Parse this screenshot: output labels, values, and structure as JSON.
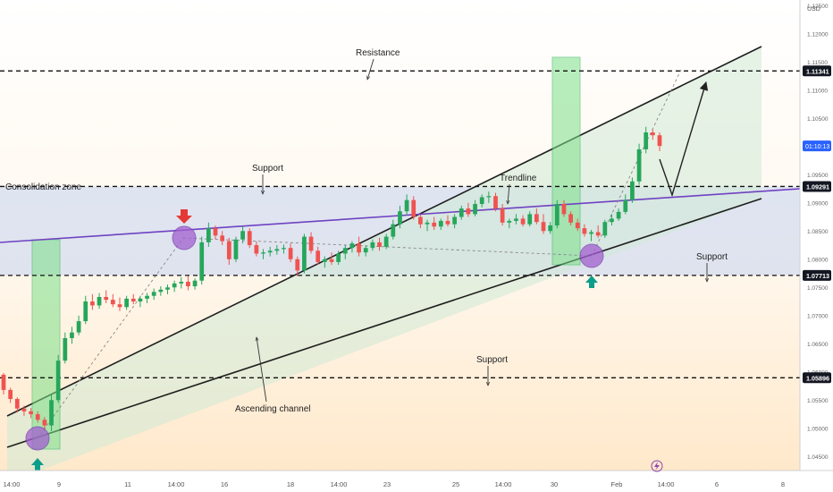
{
  "chart_data": {
    "type": "candlestick",
    "symbol_currency": "USD",
    "y_axis": {
      "min": 1.0425,
      "max": 1.126,
      "tick_labels": [
        "1.12500",
        "1.12000",
        "1.11500",
        "1.11000",
        "1.10500",
        "1.10000",
        "1.09500",
        "1.09000",
        "1.08500",
        "1.08000",
        "1.07500",
        "1.07000",
        "1.06500",
        "1.06000",
        "1.05500",
        "1.05000",
        "1.04500"
      ],
      "tick_values": [
        1.125,
        1.12,
        1.115,
        1.11,
        1.105,
        1.1,
        1.095,
        1.09,
        1.085,
        1.08,
        1.075,
        1.07,
        1.065,
        1.06,
        1.055,
        1.05,
        1.045
      ]
    },
    "x_axis": {
      "tick_labels": [
        "14:00",
        "9",
        "11",
        "14:00",
        "16",
        "18",
        "14:00",
        "23",
        "25",
        "14:00",
        "30",
        "Feb",
        "14:00",
        "6",
        "8"
      ]
    },
    "price_levels": [
      {
        "name": "resistance",
        "value": 1.11341,
        "label": "1.11341"
      },
      {
        "name": "consolidation-top",
        "value": 1.09291,
        "label": "1.09291"
      },
      {
        "name": "support-mid",
        "value": 1.07713,
        "label": "1.07713"
      },
      {
        "name": "support-low",
        "value": 1.05896,
        "label": "1.05896"
      }
    ],
    "countdown_label": "01:10:13",
    "countdown_value": 1.1001,
    "annotations": {
      "resistance": "Resistance",
      "support_top": "Support",
      "consolidation_zone": "Consolidation zone",
      "trendline": "Trendline",
      "support_right": "Support",
      "support_bottom": "Support",
      "ascending_channel": "Ascending channel"
    },
    "candles_ohlc": [
      [
        1.0595,
        1.0598,
        1.056,
        1.0568
      ],
      [
        1.0568,
        1.0572,
        1.0545,
        1.0552
      ],
      [
        1.0552,
        1.0555,
        1.0528,
        1.0535
      ],
      [
        1.0535,
        1.054,
        1.0522,
        1.053
      ],
      [
        1.053,
        1.0536,
        1.0518,
        1.0525
      ],
      [
        1.0525,
        1.053,
        1.051,
        1.0515
      ],
      [
        1.0515,
        1.052,
        1.0495,
        1.0505
      ],
      [
        1.0505,
        1.056,
        1.0495,
        1.055
      ],
      [
        1.055,
        1.063,
        1.0545,
        1.062
      ],
      [
        1.062,
        1.067,
        1.0615,
        1.066
      ],
      [
        1.066,
        1.068,
        1.065,
        1.067
      ],
      [
        1.067,
        1.07,
        1.0665,
        1.069
      ],
      [
        1.069,
        1.0735,
        1.0685,
        1.0725
      ],
      [
        1.0725,
        1.0738,
        1.071,
        1.0718
      ],
      [
        1.0718,
        1.074,
        1.0712,
        1.0733
      ],
      [
        1.0733,
        1.0745,
        1.0722,
        1.0728
      ],
      [
        1.0728,
        1.0738,
        1.0715,
        1.072
      ],
      [
        1.072,
        1.0732,
        1.0708,
        1.0715
      ],
      [
        1.0715,
        1.0735,
        1.071,
        1.073
      ],
      [
        1.073,
        1.0738,
        1.072,
        1.0725
      ],
      [
        1.0725,
        1.0735,
        1.0715,
        1.073
      ],
      [
        1.073,
        1.074,
        1.0722,
        1.0735
      ],
      [
        1.0735,
        1.0748,
        1.0728,
        1.0742
      ],
      [
        1.0742,
        1.0752,
        1.0735,
        1.0746
      ],
      [
        1.0746,
        1.0755,
        1.0738,
        1.075
      ],
      [
        1.075,
        1.0762,
        1.0742,
        1.0757
      ],
      [
        1.0757,
        1.0768,
        1.0748,
        1.076
      ],
      [
        1.076,
        1.077,
        1.0745,
        1.0752
      ],
      [
        1.0752,
        1.0766,
        1.0746,
        1.0762
      ],
      [
        1.0762,
        1.084,
        1.0755,
        1.083
      ],
      [
        1.083,
        1.0865,
        1.0822,
        1.0855
      ],
      [
        1.0855,
        1.086,
        1.0835,
        1.0842
      ],
      [
        1.0842,
        1.085,
        1.0825,
        1.0832
      ],
      [
        1.0832,
        1.0838,
        1.079,
        1.08
      ],
      [
        1.08,
        1.084,
        1.0795,
        1.0835
      ],
      [
        1.0835,
        1.0858,
        1.0828,
        1.085
      ],
      [
        1.085,
        1.0855,
        1.082,
        1.0825
      ],
      [
        1.0825,
        1.0832,
        1.0805,
        1.081
      ],
      [
        1.081,
        1.0818,
        1.08,
        1.0812
      ],
      [
        1.0812,
        1.0822,
        1.0805,
        1.0815
      ],
      [
        1.0815,
        1.0825,
        1.0808,
        1.0818
      ],
      [
        1.0818,
        1.0826,
        1.081,
        1.082
      ],
      [
        1.082,
        1.0828,
        1.0795,
        1.08
      ],
      [
        1.08,
        1.0805,
        1.077,
        1.078
      ],
      [
        1.078,
        1.0845,
        1.0775,
        1.084
      ],
      [
        1.084,
        1.0848,
        1.081,
        1.0815
      ],
      [
        1.0815,
        1.0822,
        1.079,
        1.0795
      ],
      [
        1.0795,
        1.0805,
        1.0785,
        1.08
      ],
      [
        1.08,
        1.0812,
        1.079,
        1.0795
      ],
      [
        1.0795,
        1.0815,
        1.079,
        1.081
      ],
      [
        1.081,
        1.0825,
        1.08,
        1.082
      ],
      [
        1.082,
        1.0832,
        1.0812,
        1.0828
      ],
      [
        1.0828,
        1.084,
        1.0805,
        1.0812
      ],
      [
        1.0812,
        1.0825,
        1.0805,
        1.082
      ],
      [
        1.082,
        1.0835,
        1.0815,
        1.083
      ],
      [
        1.083,
        1.0838,
        1.0815,
        1.0822
      ],
      [
        1.0822,
        1.0845,
        1.0818,
        1.084
      ],
      [
        1.084,
        1.087,
        1.0835,
        1.0862
      ],
      [
        1.0862,
        1.0895,
        1.0855,
        1.0885
      ],
      [
        1.0885,
        1.0915,
        1.0878,
        1.0905
      ],
      [
        1.0905,
        1.0912,
        1.087,
        1.0875
      ],
      [
        1.0875,
        1.088,
        1.0855,
        1.0862
      ],
      [
        1.0862,
        1.087,
        1.085,
        1.0865
      ],
      [
        1.0865,
        1.0875,
        1.0852,
        1.0858
      ],
      [
        1.0858,
        1.0872,
        1.0852,
        1.0868
      ],
      [
        1.0868,
        1.0878,
        1.0858,
        1.0862
      ],
      [
        1.0862,
        1.088,
        1.0855,
        1.0875
      ],
      [
        1.0875,
        1.0895,
        1.087,
        1.089
      ],
      [
        1.089,
        1.09,
        1.0875,
        1.088
      ],
      [
        1.088,
        1.0905,
        1.0876,
        1.0898
      ],
      [
        1.0898,
        1.0915,
        1.0892,
        1.091
      ],
      [
        1.091,
        1.092,
        1.09,
        1.0912
      ],
      [
        1.0912,
        1.0918,
        1.0885,
        1.089
      ],
      [
        1.089,
        1.0898,
        1.086,
        1.0865
      ],
      [
        1.0865,
        1.0872,
        1.0855,
        1.0868
      ],
      [
        1.0868,
        1.088,
        1.0862,
        1.0872
      ],
      [
        1.0872,
        1.0878,
        1.0858,
        1.0862
      ],
      [
        1.0862,
        1.0885,
        1.0858,
        1.088
      ],
      [
        1.088,
        1.089,
        1.0862,
        1.0866
      ],
      [
        1.0866,
        1.088,
        1.0845,
        1.085
      ],
      [
        1.085,
        1.0866,
        1.0845,
        1.086
      ],
      [
        1.086,
        1.0905,
        1.0855,
        1.0898
      ],
      [
        1.0898,
        1.0905,
        1.0875,
        1.088
      ],
      [
        1.088,
        1.0885,
        1.086,
        1.0865
      ],
      [
        1.0865,
        1.0872,
        1.085,
        1.0855
      ],
      [
        1.0855,
        1.0862,
        1.084,
        1.0845
      ],
      [
        1.0845,
        1.0852,
        1.0832,
        1.0848
      ],
      [
        1.0848,
        1.086,
        1.0838,
        1.0842
      ],
      [
        1.0842,
        1.087,
        1.0838,
        1.0866
      ],
      [
        1.0866,
        1.088,
        1.086,
        1.0872
      ],
      [
        1.0872,
        1.089,
        1.0868,
        1.0884
      ],
      [
        1.0884,
        1.0915,
        1.088,
        1.0905
      ],
      [
        1.0905,
        1.0945,
        1.09,
        1.0938
      ],
      [
        1.0938,
        1.1005,
        1.0932,
        1.0995
      ],
      [
        1.0995,
        1.1035,
        1.0988,
        1.1025
      ],
      [
        1.1025,
        1.103,
        1.1012,
        1.102
      ],
      [
        1.102,
        1.1025,
        1.0992,
        1.1001
      ]
    ]
  }
}
